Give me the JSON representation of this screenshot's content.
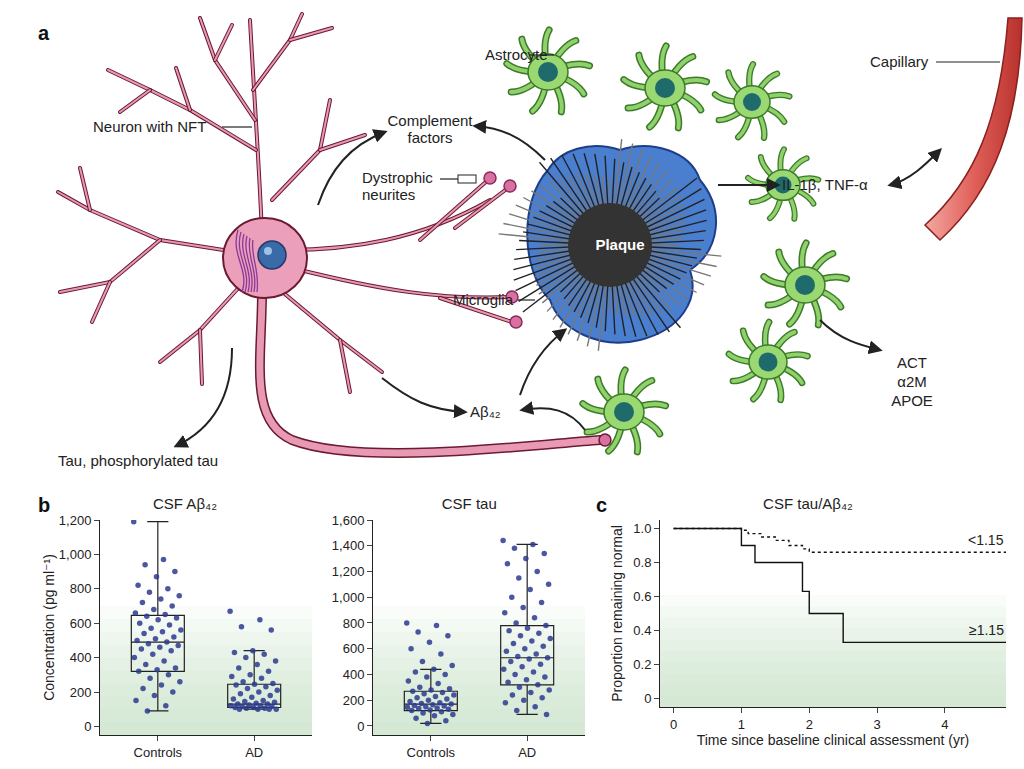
{
  "panel_labels": [
    "a",
    "b",
    "c"
  ],
  "diagram": {
    "neuron": "Neuron with NFT",
    "complement": [
      "Complement",
      "factors"
    ],
    "dystrophic": [
      "Dystrophic",
      "neurites"
    ],
    "plaque": "Plaque",
    "microglia": "Microglia",
    "astrocyte": "Astrocyte",
    "capillary": "Capillary",
    "cytokines": "IL-1β, TNF-α",
    "astro_products": [
      "ACT",
      "α2M",
      "APOE"
    ],
    "abeta": "Aβ₄₂",
    "tau": "Tau, phosphorylated tau"
  },
  "chart_data": [
    {
      "type": "box",
      "title": "CSF Aβ₄₂",
      "y_label": "Concentration (pg ml⁻¹)",
      "categories": [
        "Controls",
        "AD"
      ],
      "ylim": [
        -50,
        1200
      ],
      "yticks": [
        0,
        200,
        400,
        600,
        800,
        {
          "value": 1000,
          "label": "1,000"
        },
        {
          "value": 1200,
          "label": "1,200"
        }
      ],
      "color": "#2b3990",
      "boxes": [
        {
          "min": 90,
          "q1": 320,
          "median": 490,
          "q3": 645,
          "max": 1190
        },
        {
          "min": 100,
          "q1": 110,
          "median": 130,
          "q3": 245,
          "max": 440
        }
      ],
      "points": [
        [
          1190,
          970,
          940,
          900,
          870,
          820,
          800,
          780,
          760,
          740,
          720,
          700,
          680,
          660,
          650,
          640,
          630,
          620,
          600,
          590,
          570,
          560,
          550,
          540,
          520,
          510,
          500,
          490,
          480,
          470,
          460,
          450,
          440,
          420,
          400,
          380,
          360,
          340,
          330,
          320,
          300,
          280,
          260,
          240,
          220,
          200,
          180,
          150,
          120,
          90
        ],
        [
          670,
          620,
          580,
          560,
          440,
          430,
          420,
          400,
          380,
          360,
          340,
          320,
          300,
          290,
          280,
          260,
          250,
          245,
          240,
          230,
          220,
          210,
          200,
          190,
          180,
          170,
          160,
          150,
          145,
          140,
          135,
          130,
          130,
          125,
          120,
          120,
          115,
          115,
          110,
          110,
          105,
          105,
          100,
          100,
          100,
          100
        ]
      ]
    },
    {
      "type": "box",
      "title": "CSF tau",
      "categories": [
        "Controls",
        "AD"
      ],
      "ylim": [
        -70,
        1600
      ],
      "yticks": [
        0,
        200,
        400,
        600,
        800,
        {
          "value": 1000,
          "label": "1,000"
        },
        {
          "value": 1200,
          "label": "1,200"
        },
        {
          "value": 1400,
          "label": "1,400"
        },
        {
          "value": 1600,
          "label": "1,600"
        }
      ],
      "color": "#2b3990",
      "boxes": [
        {
          "min": 20,
          "q1": 120,
          "median": 170,
          "q3": 270,
          "max": 440
        },
        {
          "min": 90,
          "q1": 320,
          "median": 530,
          "q3": 780,
          "max": 1410
        }
      ],
      "points": [
        [
          800,
          780,
          730,
          700,
          650,
          600,
          560,
          500,
          470,
          440,
          420,
          400,
          380,
          350,
          330,
          300,
          290,
          280,
          270,
          260,
          250,
          240,
          230,
          220,
          210,
          200,
          190,
          180,
          175,
          170,
          165,
          160,
          155,
          150,
          145,
          140,
          135,
          130,
          125,
          120,
          110,
          100,
          90,
          80,
          60,
          40,
          20
        ],
        [
          1440,
          1410,
          1380,
          1340,
          1300,
          1260,
          1200,
          1150,
          1100,
          1060,
          1000,
          960,
          920,
          880,
          840,
          800,
          780,
          760,
          740,
          720,
          700,
          680,
          660,
          640,
          620,
          600,
          580,
          560,
          540,
          530,
          520,
          500,
          480,
          460,
          440,
          420,
          400,
          380,
          360,
          340,
          320,
          300,
          280,
          260,
          240,
          220,
          200,
          180,
          150,
          120,
          90
        ]
      ]
    },
    {
      "type": "line",
      "title": "CSF tau/Aβ₄₂",
      "x_label": "Time since baseline clinical assessment (yr)",
      "y_label": "Proportion remaining normal",
      "xlim": [
        -0.2,
        4.9
      ],
      "xticks": [
        0,
        1,
        2,
        3,
        4
      ],
      "ylim": [
        -0.05,
        1.05
      ],
      "yticks": [
        0,
        0.2,
        0.4,
        0.6,
        0.8,
        {
          "value": 1,
          "label": "1.0"
        }
      ],
      "series": [
        {
          "name": "<1.15",
          "color": "#111111",
          "line_style": "dotted",
          "x": [
            0,
            1,
            1.1,
            1.3,
            1.5,
            1.7,
            1.9,
            2,
            4.9
          ],
          "values": [
            1,
            0.99,
            0.97,
            0.95,
            0.93,
            0.9,
            0.88,
            0.86,
            0.86
          ]
        },
        {
          "name": "≥1.15",
          "color": "#111111",
          "line_style": "solid",
          "x": [
            0,
            1,
            1.2,
            1.9,
            2,
            2.5,
            4.9
          ],
          "values": [
            1,
            0.9,
            0.8,
            0.63,
            0.5,
            0.33,
            0.33
          ]
        }
      ]
    }
  ]
}
